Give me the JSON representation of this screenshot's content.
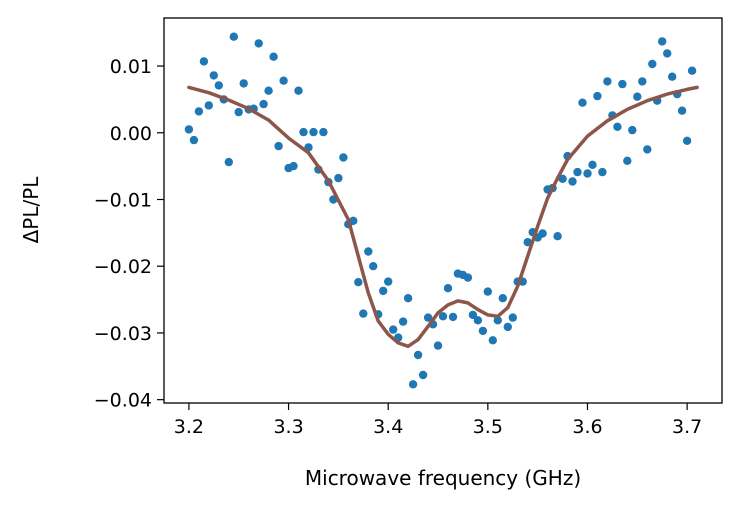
{
  "chart_data": {
    "type": "scatter",
    "xlabel": "Microwave frequency (GHz)",
    "ylabel": "ΔPL/PL",
    "xlim": [
      3.175,
      3.735
    ],
    "ylim": [
      -0.0405,
      0.0172
    ],
    "xticks": [
      3.2,
      3.3,
      3.4,
      3.5,
      3.6,
      3.7
    ],
    "xtick_labels": [
      "3.2",
      "3.3",
      "3.4",
      "3.5",
      "3.6",
      "3.7"
    ],
    "yticks": [
      0.01,
      0.0,
      -0.01,
      -0.02,
      -0.03,
      -0.04
    ],
    "ytick_labels": [
      "0.01",
      "0.00",
      "−0.01",
      "−0.02",
      "−0.03",
      "−0.04"
    ],
    "grid": false,
    "colors": {
      "points": "#1f77b4",
      "fit": "#8c564b"
    },
    "series": [
      {
        "kind": "scatter",
        "points": [
          [
            3.2,
            0.0005
          ],
          [
            3.205,
            -0.0011
          ],
          [
            3.21,
            0.0032
          ],
          [
            3.215,
            0.0107
          ],
          [
            3.22,
            0.0041
          ],
          [
            3.225,
            0.0086
          ],
          [
            3.23,
            0.0071
          ],
          [
            3.235,
            0.005
          ],
          [
            3.24,
            -0.0044
          ],
          [
            3.245,
            0.0144
          ],
          [
            3.25,
            0.0031
          ],
          [
            3.255,
            0.0074
          ],
          [
            3.26,
            0.0035
          ],
          [
            3.265,
            0.0036
          ],
          [
            3.27,
            0.0134
          ],
          [
            3.275,
            0.0043
          ],
          [
            3.28,
            0.0063
          ],
          [
            3.285,
            0.0114
          ],
          [
            3.29,
            -0.002
          ],
          [
            3.295,
            0.0078
          ],
          [
            3.3,
            -0.0053
          ],
          [
            3.305,
            -0.005
          ],
          [
            3.31,
            0.0063
          ],
          [
            3.315,
            0.0001
          ],
          [
            3.32,
            -0.0022
          ],
          [
            3.325,
            0.0001
          ],
          [
            3.33,
            -0.0055
          ],
          [
            3.335,
            0.0001
          ],
          [
            3.34,
            -0.0074
          ],
          [
            3.345,
            -0.01
          ],
          [
            3.35,
            -0.0068
          ],
          [
            3.355,
            -0.0037
          ],
          [
            3.36,
            -0.0137
          ],
          [
            3.365,
            -0.0132
          ],
          [
            3.37,
            -0.0224
          ],
          [
            3.375,
            -0.0271
          ],
          [
            3.38,
            -0.0178
          ],
          [
            3.385,
            -0.02
          ],
          [
            3.39,
            -0.0272
          ],
          [
            3.395,
            -0.0237
          ],
          [
            3.4,
            -0.0223
          ],
          [
            3.405,
            -0.0295
          ],
          [
            3.41,
            -0.0307
          ],
          [
            3.415,
            -0.0283
          ],
          [
            3.42,
            -0.0248
          ],
          [
            3.425,
            -0.0377
          ],
          [
            3.43,
            -0.0333
          ],
          [
            3.435,
            -0.0363
          ],
          [
            3.44,
            -0.0277
          ],
          [
            3.445,
            -0.0287
          ],
          [
            3.45,
            -0.0319
          ],
          [
            3.455,
            -0.0275
          ],
          [
            3.46,
            -0.0233
          ],
          [
            3.465,
            -0.0276
          ],
          [
            3.47,
            -0.0211
          ],
          [
            3.475,
            -0.0213
          ],
          [
            3.48,
            -0.0217
          ],
          [
            3.485,
            -0.0273
          ],
          [
            3.49,
            -0.0281
          ],
          [
            3.495,
            -0.0297
          ],
          [
            3.5,
            -0.0238
          ],
          [
            3.505,
            -0.0311
          ],
          [
            3.51,
            -0.0281
          ],
          [
            3.515,
            -0.0248
          ],
          [
            3.52,
            -0.0291
          ],
          [
            3.525,
            -0.0277
          ],
          [
            3.53,
            -0.0223
          ],
          [
            3.535,
            -0.0223
          ],
          [
            3.54,
            -0.0164
          ],
          [
            3.545,
            -0.0149
          ],
          [
            3.55,
            -0.0157
          ],
          [
            3.555,
            -0.0151
          ],
          [
            3.56,
            -0.0085
          ],
          [
            3.565,
            -0.0083
          ],
          [
            3.57,
            -0.0155
          ],
          [
            3.575,
            -0.0069
          ],
          [
            3.58,
            -0.0035
          ],
          [
            3.585,
            -0.0073
          ],
          [
            3.59,
            -0.0059
          ],
          [
            3.595,
            0.0045
          ],
          [
            3.6,
            -0.0061
          ],
          [
            3.605,
            -0.0048
          ],
          [
            3.61,
            0.0055
          ],
          [
            3.615,
            -0.0059
          ],
          [
            3.62,
            0.0077
          ],
          [
            3.625,
            0.0026
          ],
          [
            3.63,
            0.0009
          ],
          [
            3.635,
            0.0073
          ],
          [
            3.64,
            -0.0042
          ],
          [
            3.645,
            0.0004
          ],
          [
            3.65,
            0.0054
          ],
          [
            3.655,
            0.0077
          ],
          [
            3.66,
            -0.0025
          ],
          [
            3.665,
            0.0103
          ],
          [
            3.67,
            0.0048
          ],
          [
            3.675,
            0.0137
          ],
          [
            3.68,
            0.0119
          ],
          [
            3.685,
            0.0084
          ],
          [
            3.69,
            0.0058
          ],
          [
            3.695,
            0.0033
          ],
          [
            3.7,
            -0.0012
          ],
          [
            3.705,
            0.0093
          ]
        ]
      },
      {
        "kind": "line",
        "points": [
          [
            3.2,
            0.0068
          ],
          [
            3.22,
            0.006
          ],
          [
            3.24,
            0.0049
          ],
          [
            3.26,
            0.0036
          ],
          [
            3.28,
            0.0019
          ],
          [
            3.3,
            -0.0008
          ],
          [
            3.32,
            -0.003
          ],
          [
            3.34,
            -0.0072
          ],
          [
            3.36,
            -0.013
          ],
          [
            3.37,
            -0.0185
          ],
          [
            3.38,
            -0.024
          ],
          [
            3.39,
            -0.0282
          ],
          [
            3.4,
            -0.0302
          ],
          [
            3.41,
            -0.0315
          ],
          [
            3.42,
            -0.032
          ],
          [
            3.43,
            -0.031
          ],
          [
            3.44,
            -0.029
          ],
          [
            3.45,
            -0.027
          ],
          [
            3.46,
            -0.0258
          ],
          [
            3.47,
            -0.0252
          ],
          [
            3.48,
            -0.0255
          ],
          [
            3.49,
            -0.0265
          ],
          [
            3.5,
            -0.0273
          ],
          [
            3.51,
            -0.0275
          ],
          [
            3.52,
            -0.0262
          ],
          [
            3.53,
            -0.023
          ],
          [
            3.54,
            -0.0185
          ],
          [
            3.55,
            -0.014
          ],
          [
            3.56,
            -0.0098
          ],
          [
            3.57,
            -0.0068
          ],
          [
            3.58,
            -0.004
          ],
          [
            3.6,
            -0.0005
          ],
          [
            3.62,
            0.0018
          ],
          [
            3.64,
            0.0035
          ],
          [
            3.66,
            0.0048
          ],
          [
            3.68,
            0.0058
          ],
          [
            3.7,
            0.0065
          ],
          [
            3.71,
            0.0068
          ]
        ]
      }
    ]
  }
}
